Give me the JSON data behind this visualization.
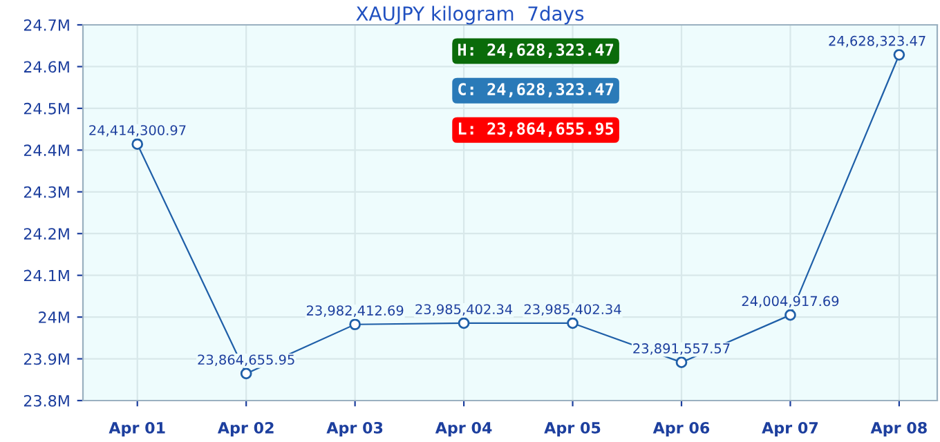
{
  "chart_data": {
    "type": "line",
    "title": "XAUJPY kilogram  7days",
    "categories": [
      "Apr 01",
      "Apr 02",
      "Apr 03",
      "Apr 04",
      "Apr 05",
      "Apr 06",
      "Apr 07",
      "Apr 08"
    ],
    "series": [
      {
        "color": "#1f5fa8",
        "values": [
          24414300.97,
          23864655.95,
          23982412.69,
          23985402.34,
          23985402.34,
          23891557.57,
          24004917.69,
          24628323.47
        ],
        "value_labels": [
          "24,414,300.97",
          "23,864,655.95",
          "23,982,412.69",
          "23,985,402.34",
          "23,985,402.34",
          "23,891,557.57",
          "24,004,917.69",
          "24,628,323.47"
        ]
      }
    ],
    "ylim": [
      23800000,
      24700000
    ],
    "yticks": [
      {
        "value": 23800000,
        "label": "23.8M"
      },
      {
        "value": 23900000,
        "label": "23.9M"
      },
      {
        "value": 24000000,
        "label": "24M"
      },
      {
        "value": 24100000,
        "label": "24.1M"
      },
      {
        "value": 24200000,
        "label": "24.2M"
      },
      {
        "value": 24300000,
        "label": "24.3M"
      },
      {
        "value": 24400000,
        "label": "24.4M"
      },
      {
        "value": 24500000,
        "label": "24.5M"
      },
      {
        "value": 24600000,
        "label": "24.6M"
      },
      {
        "value": 24700000,
        "label": "24.7M"
      }
    ],
    "annotations": [
      "H: 24,628,323.47",
      "C: 24,628,323.47",
      "L: 23,864,655.95"
    ],
    "grid": true,
    "marker": "circle",
    "line_style": "solid"
  }
}
